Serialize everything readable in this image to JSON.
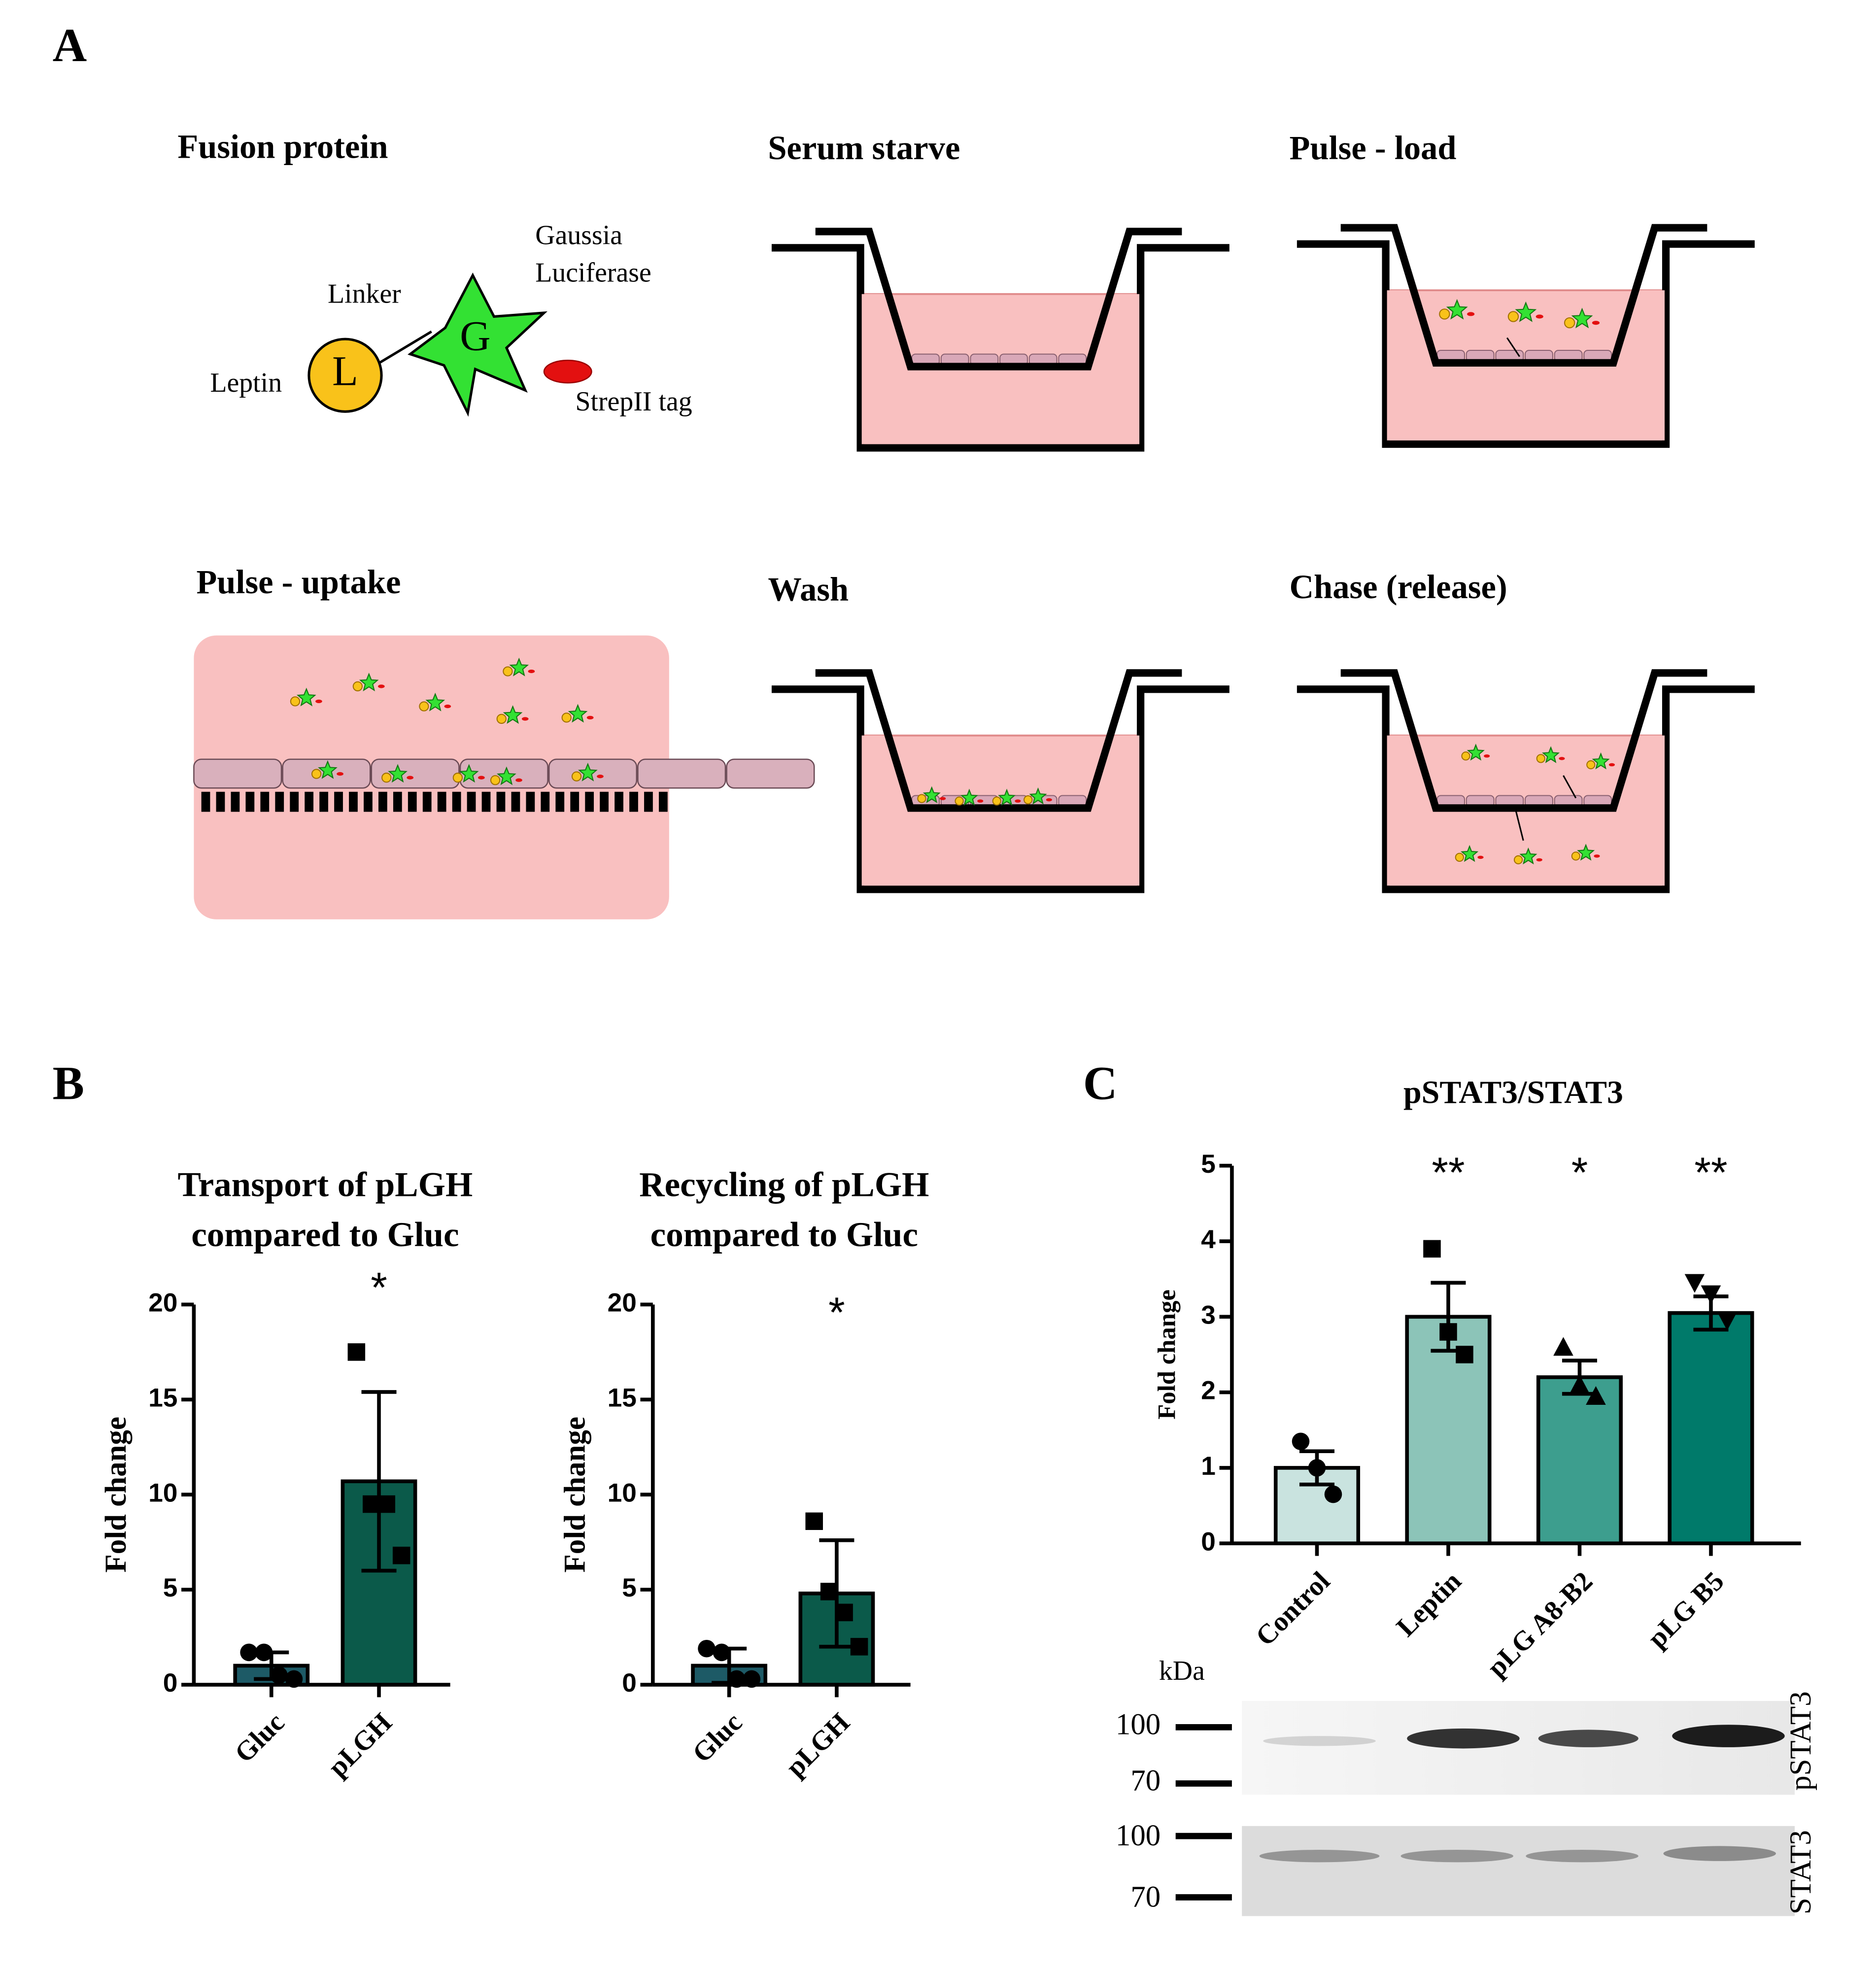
{
  "panel_labels": [
    "A",
    "B",
    "C"
  ],
  "diagram": {
    "steps": [
      "Fusion protein",
      "Serum starve",
      "Pulse - load",
      "Pulse - uptake",
      "Wash",
      "Chase (release)"
    ],
    "protein": {
      "gaussia": [
        "Gaussia",
        "Luciferase"
      ],
      "linker": "Linker",
      "leptin": "Leptin",
      "l": "L",
      "g": "G",
      "tag": "StrepII tag"
    }
  },
  "chart_data": [
    {
      "type": "bar",
      "title": [
        "Transport of pLGH",
        "compared to Gluc"
      ],
      "ylabel": "Fold change",
      "categories": [
        "Gluc",
        "pLGH"
      ],
      "values": [
        1.0,
        10.7
      ],
      "errors": [
        0.7,
        4.7
      ],
      "points": [
        [
          1.7,
          1.7,
          0.5,
          0.3
        ],
        [
          17.5,
          9.5,
          9.5,
          6.8
        ]
      ],
      "markers": [
        "circle",
        "square"
      ],
      "colors": [
        "#1d5a66",
        "#0b5a4a"
      ],
      "annotations": [
        null,
        "*"
      ],
      "ylim": [
        0,
        20
      ],
      "yticks": [
        0,
        5,
        10,
        15,
        20
      ]
    },
    {
      "type": "bar",
      "title": [
        "Recycling of pLGH",
        "compared to Gluc"
      ],
      "ylabel": "Fold change",
      "categories": [
        "Gluc",
        "pLGH"
      ],
      "values": [
        1.0,
        4.8
      ],
      "errors": [
        0.9,
        2.8
      ],
      "points": [
        [
          1.9,
          1.7,
          0.3,
          0.3
        ],
        [
          8.6,
          4.9,
          3.8,
          2.0
        ]
      ],
      "markers": [
        "circle",
        "square"
      ],
      "colors": [
        "#1d5a66",
        "#0b5a4a"
      ],
      "annotations": [
        null,
        "*"
      ],
      "ylim": [
        0,
        20
      ],
      "yticks": [
        0,
        5,
        10,
        15,
        20
      ]
    },
    {
      "type": "bar",
      "title": [
        "pSTAT3/STAT3"
      ],
      "ylabel": "Fold change",
      "categories": [
        "Control",
        "Leptin",
        "pLG A8-B2",
        "pLG B5"
      ],
      "values": [
        1.0,
        3.0,
        2.2,
        3.05
      ],
      "errors": [
        0.22,
        0.45,
        0.22,
        0.22
      ],
      "points": [
        [
          1.35,
          1.0,
          0.65
        ],
        [
          3.9,
          2.8,
          2.5
        ],
        [
          2.6,
          2.1,
          1.95
        ],
        [
          3.45,
          3.3,
          2.95
        ]
      ],
      "markers": [
        "circle",
        "square",
        "triangle",
        "triangle-down"
      ],
      "colors": [
        "#c9e3df",
        "#8cc4b8",
        "#3d9e8e",
        "#007a6a"
      ],
      "annotations": [
        null,
        "**",
        "*",
        "**"
      ],
      "ylim": [
        0,
        5
      ],
      "yticks": [
        0,
        1,
        2,
        3,
        4,
        5
      ]
    }
  ],
  "blot": {
    "unit": "kDa",
    "markers": [
      "100",
      "70",
      "100",
      "70"
    ],
    "labels": [
      "pSTAT3",
      "STAT3"
    ]
  }
}
